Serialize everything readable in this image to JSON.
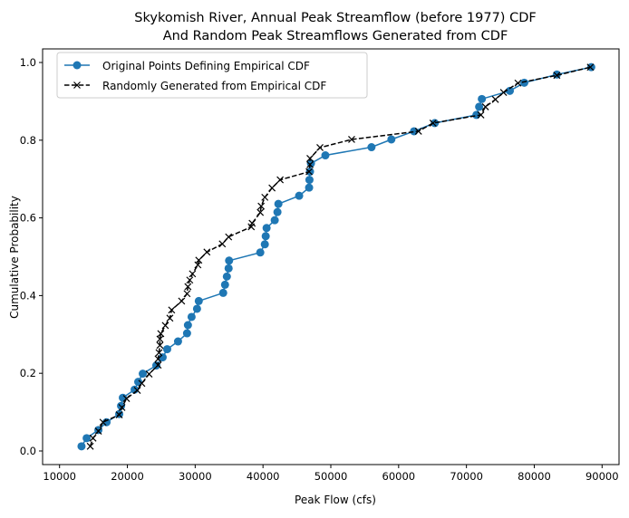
{
  "chart_data": {
    "type": "line",
    "title": [
      "Skykomish River, Annual Peak Streamflow (before 1977) CDF",
      "And Random Peak Streamflows Generated from CDF"
    ],
    "xlabel": "Peak Flow (cfs)",
    "ylabel": "Cumulative Probability",
    "xlim": [
      7500,
      92500
    ],
    "ylim": [
      -0.035,
      1.035
    ],
    "xticks": [
      10000,
      20000,
      30000,
      40000,
      50000,
      60000,
      70000,
      80000,
      90000
    ],
    "yticks": [
      0.0,
      0.2,
      0.4,
      0.6,
      0.8,
      1.0
    ],
    "ytick_labels": [
      "0.0",
      "0.2",
      "0.4",
      "0.6",
      "0.8",
      "1.0"
    ],
    "grid": false,
    "legend_placement": "top-left",
    "series": [
      {
        "name": "Original Points Defining Empirical CDF",
        "color": "#1f77b4",
        "marker": "circle",
        "linestyle": "solid",
        "x": [
          13240,
          14000,
          15730,
          16930,
          18800,
          19070,
          19330,
          21070,
          21600,
          22270,
          24270,
          25200,
          25870,
          27470,
          28800,
          28930,
          29470,
          30270,
          30530,
          34130,
          34400,
          34670,
          34930,
          35000,
          39600,
          40270,
          40400,
          40530,
          41730,
          42130,
          42270,
          45330,
          46800,
          46850,
          46930,
          47070,
          49200,
          56000,
          58930,
          62270,
          65330,
          71470,
          71870,
          72270,
          76400,
          78530,
          83330,
          88400
        ],
        "y": [
          0.012,
          0.033,
          0.054,
          0.074,
          0.095,
          0.116,
          0.137,
          0.158,
          0.178,
          0.199,
          0.22,
          0.241,
          0.262,
          0.282,
          0.303,
          0.324,
          0.345,
          0.366,
          0.386,
          0.407,
          0.428,
          0.449,
          0.47,
          0.49,
          0.511,
          0.532,
          0.553,
          0.574,
          0.594,
          0.615,
          0.636,
          0.657,
          0.678,
          0.698,
          0.719,
          0.74,
          0.761,
          0.782,
          0.802,
          0.823,
          0.844,
          0.865,
          0.886,
          0.906,
          0.927,
          0.948,
          0.969,
          0.988
        ]
      },
      {
        "name": "Randomly Generated from Empirical CDF",
        "color": "#000000",
        "marker": "x",
        "linestyle": "dashed",
        "x": [
          14530,
          14930,
          15730,
          16400,
          18800,
          19200,
          19870,
          21470,
          22130,
          23200,
          24530,
          24530,
          24670,
          24800,
          24800,
          24930,
          25600,
          26270,
          26530,
          28000,
          28800,
          28930,
          29200,
          29600,
          30400,
          30530,
          31730,
          34000,
          34930,
          38270,
          38400,
          39600,
          39730,
          40270,
          41330,
          42530,
          46800,
          46930,
          46930,
          48400,
          53070,
          62930,
          65070,
          72130,
          72800,
          74270,
          75470,
          77600,
          83330,
          88270
        ],
        "y": [
          0.012,
          0.033,
          0.051,
          0.074,
          0.093,
          0.112,
          0.135,
          0.156,
          0.174,
          0.198,
          0.221,
          0.237,
          0.253,
          0.272,
          0.288,
          0.302,
          0.323,
          0.342,
          0.363,
          0.386,
          0.405,
          0.423,
          0.44,
          0.456,
          0.479,
          0.491,
          0.512,
          0.533,
          0.551,
          0.577,
          0.586,
          0.614,
          0.63,
          0.653,
          0.677,
          0.698,
          0.719,
          0.737,
          0.753,
          0.781,
          0.802,
          0.823,
          0.844,
          0.865,
          0.886,
          0.905,
          0.923,
          0.947,
          0.967,
          0.988
        ]
      }
    ]
  }
}
